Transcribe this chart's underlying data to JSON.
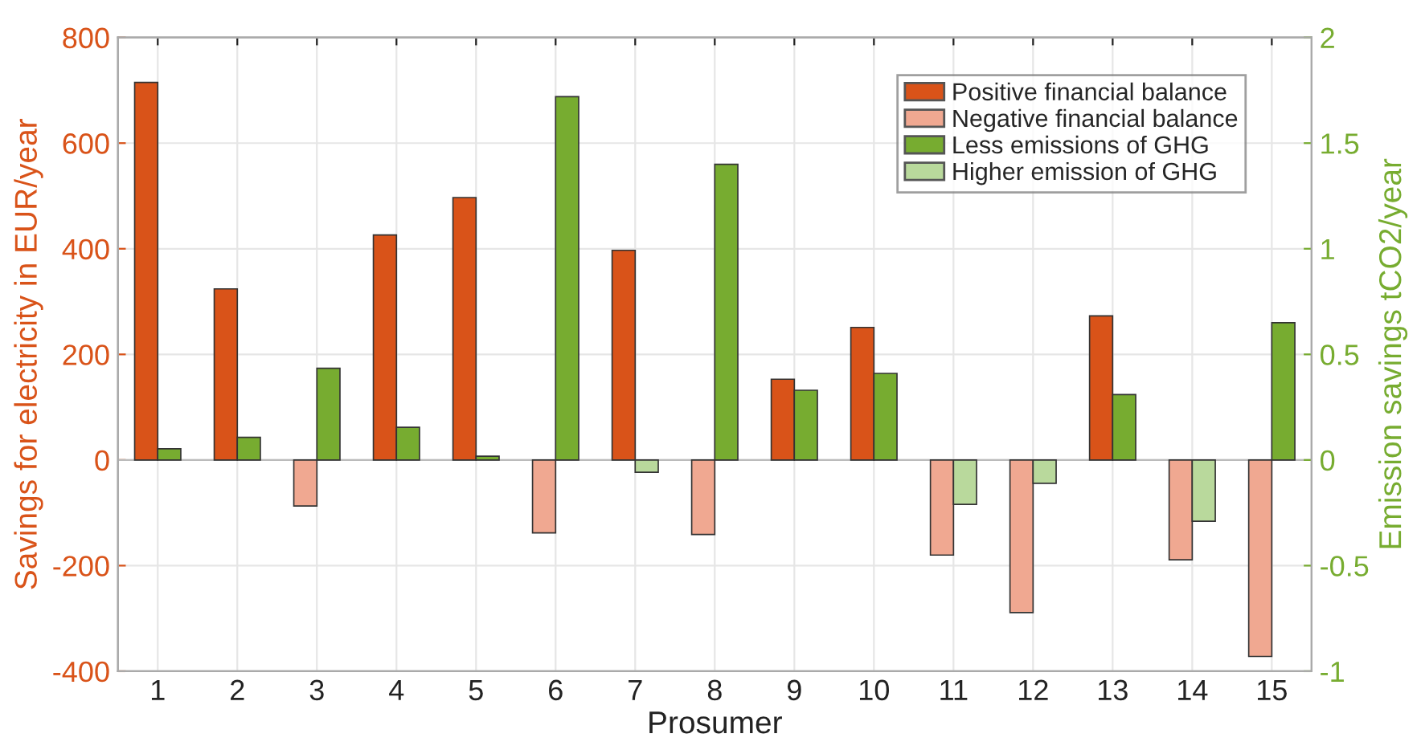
{
  "chart_data": {
    "type": "bar",
    "xlabel": "Prosumer",
    "ylabel": "Savings for electricity in EUR/year",
    "y2label": "Emission savings tCO2/year",
    "categories": [
      "1",
      "2",
      "3",
      "4",
      "5",
      "6",
      "7",
      "8",
      "9",
      "10",
      "11",
      "12",
      "13",
      "14",
      "15"
    ],
    "series": [
      {
        "name": "Positive financial balance",
        "color": "#d95319",
        "values": [
          715,
          324,
          null,
          426,
          497,
          null,
          397,
          null,
          153,
          251,
          null,
          null,
          273,
          null,
          null
        ]
      },
      {
        "name": "Negative financial balance",
        "color": "#f0a891",
        "values": [
          null,
          null,
          -87,
          null,
          null,
          -138,
          null,
          -141,
          null,
          null,
          -180,
          -289,
          null,
          -189,
          -372
        ]
      },
      {
        "name": "Less emissions of GHG",
        "color": "#77ac30",
        "axis": "y2",
        "values": [
          0.053,
          0.107,
          0.434,
          0.155,
          0.018,
          1.72,
          null,
          1.4,
          0.33,
          0.41,
          null,
          null,
          0.31,
          null,
          0.65
        ]
      },
      {
        "name": "Higher emission of GHG",
        "color": "#b9d99c",
        "axis": "y2",
        "values": [
          null,
          null,
          null,
          null,
          null,
          null,
          -0.058,
          null,
          null,
          null,
          -0.21,
          -0.11,
          null,
          -0.29,
          null
        ]
      }
    ],
    "ylim": [
      -400,
      800
    ],
    "yticks": [
      -400,
      -200,
      0,
      200,
      400,
      600,
      800
    ],
    "y2lim": [
      -1,
      2
    ],
    "y2ticks": [
      -1,
      -0.5,
      0,
      0.5,
      1,
      1.5,
      2
    ],
    "grid": true,
    "legend": "top right"
  }
}
